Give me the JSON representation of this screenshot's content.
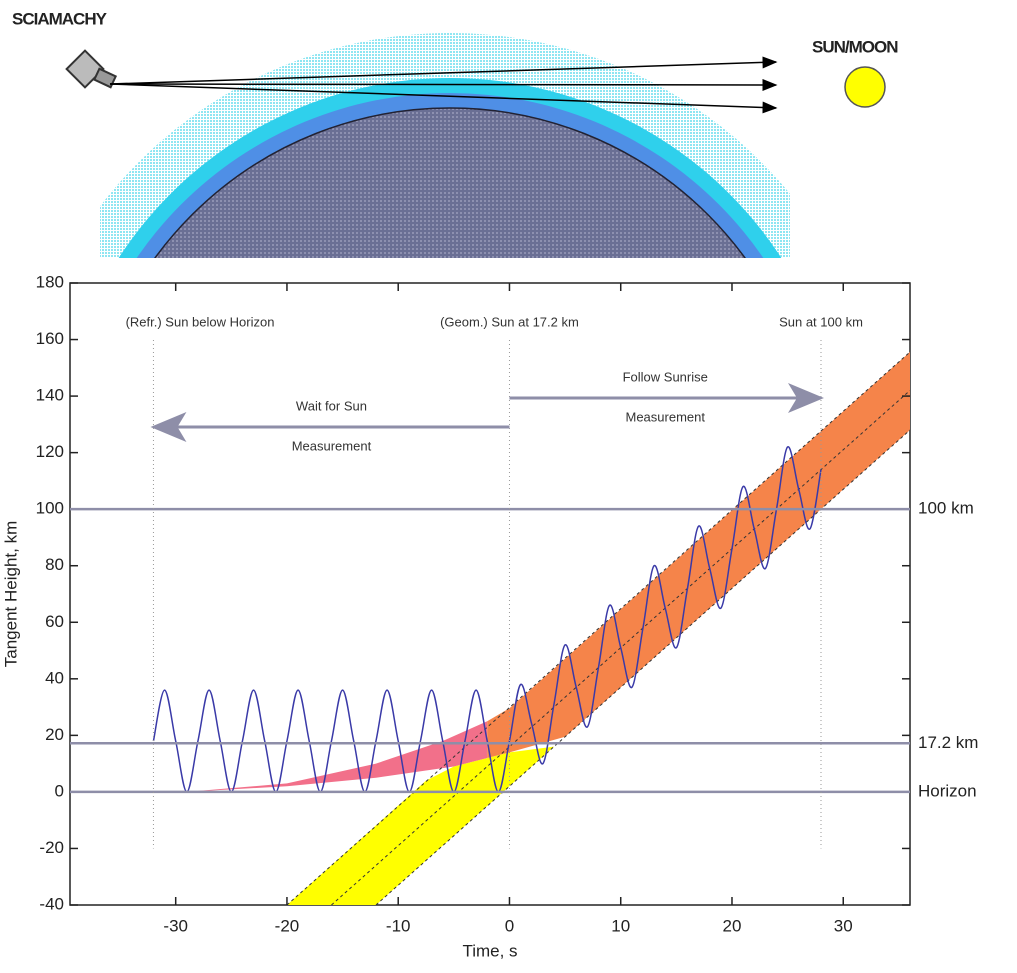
{
  "diagram": {
    "instrument_label": "SCIAMACHY",
    "target_label": "SUN/MOON"
  },
  "chart_data": {
    "type": "line",
    "x_label": "Time, s",
    "y_label": "Tangent Height, km",
    "xlim": [
      -39.5,
      36
    ],
    "ylim": [
      -40,
      180
    ],
    "xticks": [
      -30,
      -20,
      -10,
      0,
      10,
      20,
      30
    ],
    "yticks": [
      -40,
      -20,
      0,
      20,
      40,
      60,
      80,
      100,
      120,
      140,
      160,
      180
    ],
    "reference_lines": [
      {
        "value": 100,
        "label": "100 km"
      },
      {
        "value": 17.2,
        "label": "17.2 km"
      },
      {
        "value": 0,
        "label": "Horizon"
      }
    ],
    "events": [
      {
        "x": -32,
        "label": "(Refr.) Sun below Horizon"
      },
      {
        "x": 0,
        "label": "(Geom.) Sun at 17.2 km"
      },
      {
        "x": 28,
        "label": "Sun at 100 km"
      }
    ],
    "phases": [
      {
        "from": 0,
        "to": -32,
        "lines": [
          "Wait for Sun",
          "Measurement"
        ]
      },
      {
        "from": 0,
        "to": 28,
        "lines": [
          "Follow Sunrise",
          "Measurement"
        ]
      }
    ],
    "regions": [
      {
        "color": "#ffff00",
        "x": [
          -20,
          -12,
          4,
          0,
          -5,
          -7.5
        ],
        "values": [
          -40,
          -40,
          16,
          14,
          9,
          4
        ]
      },
      {
        "color": "#f2708a",
        "x": [
          -29,
          -20,
          -12,
          -6,
          -2,
          -2,
          -5,
          -12,
          -20
        ],
        "values": [
          0,
          3,
          10,
          18,
          25,
          12,
          9,
          5,
          2
        ]
      },
      {
        "color": "#f5844a",
        "x": [
          -2,
          0,
          36,
          36,
          5,
          0,
          -2
        ],
        "values": [
          25,
          29.6,
          155.6,
          128,
          19.5,
          14,
          12
        ]
      }
    ],
    "dashed_lines": [
      {
        "x": [
          -20,
          36
        ],
        "values": [
          -40,
          155.6
        ]
      },
      {
        "x": [
          -16,
          36
        ],
        "values": [
          -40,
          142
        ]
      },
      {
        "x": [
          -12,
          36
        ],
        "values": [
          -40,
          128
        ]
      }
    ],
    "series": [
      {
        "color": "#3a3aa8",
        "x": [
          -32,
          -31,
          -30,
          -29,
          -28,
          -27,
          -26,
          -25,
          -24,
          -23,
          -22,
          -21,
          -20,
          -19,
          -18,
          -17,
          -16,
          -15,
          -14,
          -13,
          -12,
          -11,
          -10,
          -9,
          -8,
          -7,
          -6,
          -5,
          -4,
          -3,
          -2,
          -1,
          0,
          1,
          2,
          3,
          4,
          5,
          6,
          7,
          8,
          9,
          10,
          11,
          12,
          13,
          14,
          15,
          16,
          17,
          18,
          19,
          20,
          21,
          22,
          23,
          24,
          25,
          26,
          27,
          28
        ],
        "values": [
          18,
          36,
          18,
          0,
          18,
          36,
          18,
          0,
          18,
          36,
          18,
          0,
          18,
          36,
          18,
          0,
          18,
          36,
          18,
          0,
          18,
          36,
          18,
          0,
          18,
          36,
          18,
          0,
          18,
          36,
          18,
          0,
          18,
          38,
          24,
          10,
          31,
          52,
          37,
          23,
          44,
          66,
          51,
          37,
          58,
          80,
          65,
          51,
          72,
          94,
          79,
          65,
          86,
          108,
          93,
          79,
          100,
          122,
          107,
          93,
          114
        ]
      }
    ]
  }
}
